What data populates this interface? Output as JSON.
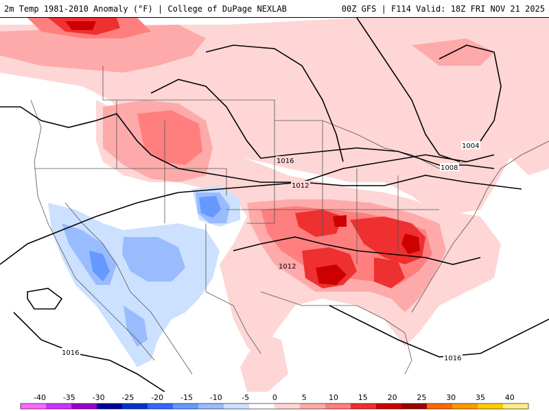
{
  "header": {
    "title": "2m Temp 1981-2010 Anomaly (°F) | College of DuPage NEXLAB",
    "run_info": "00Z GFS | F114 Valid: 18Z FRI NOV 21 2025"
  },
  "map": {
    "isobar_labels": [
      "1016",
      "1012",
      "1012",
      "1004",
      "1008",
      "1016",
      "1016"
    ]
  },
  "legend": {
    "ticks": [
      "-40",
      "-35",
      "-30",
      "-25",
      "-20",
      "-15",
      "-10",
      "-5",
      "0",
      "5",
      "10",
      "15",
      "20",
      "25",
      "30",
      "35",
      "40"
    ],
    "colors": [
      "#ff66ff",
      "#cc33ff",
      "#9900cc",
      "#000099",
      "#0033cc",
      "#3366ff",
      "#6699ff",
      "#99bbff",
      "#cce0ff",
      "#ffffff",
      "#ffd6d6",
      "#ffaaaa",
      "#ff7f7f",
      "#ee3030",
      "#cc0000",
      "#990000",
      "#ff6600",
      "#ff9900",
      "#ffcc00",
      "#ffee88"
    ]
  },
  "colors": {
    "warm_light": "#ffd6d6",
    "warm_mid": "#ffaaaa",
    "warm_strong": "#ff7f7f",
    "hot": "#ee3030",
    "hot_max": "#cc0000",
    "cool_light": "#cce0ff",
    "cool_mid": "#99bbff",
    "cool_strong": "#6699ff",
    "isobar": "#000000",
    "border": "#555555"
  }
}
